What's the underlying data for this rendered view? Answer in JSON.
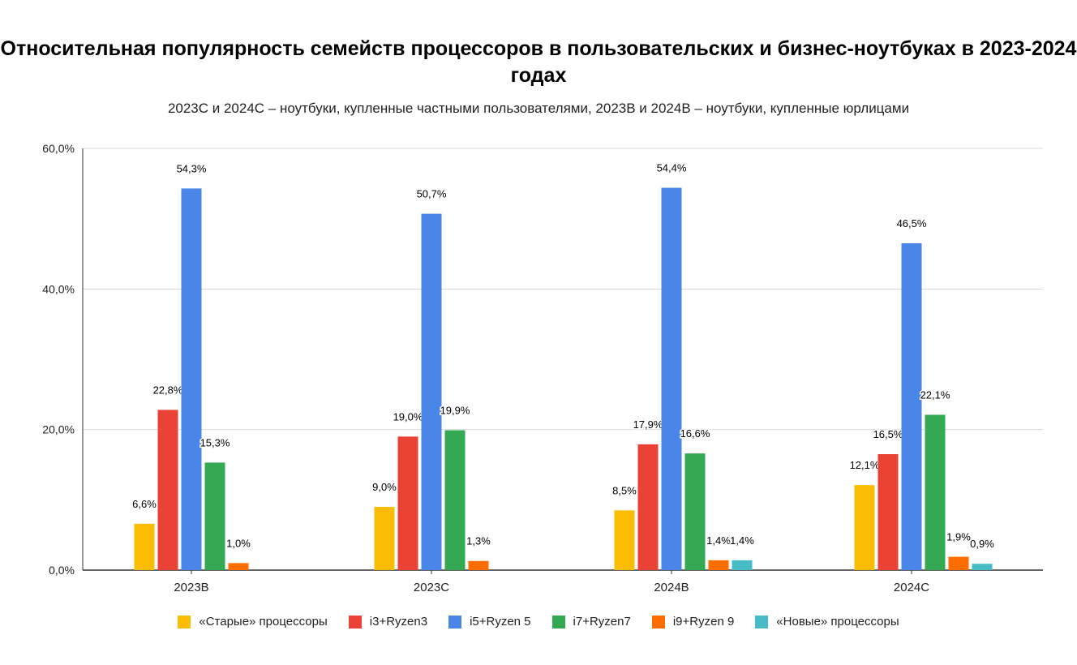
{
  "chart_data": {
    "type": "bar",
    "title": "Относительная популярность семейств процессоров в пользовательских и бизнес-ноутбуках в 2023-2024 годах",
    "subtitle": "2023C и 2024C – ноутбуки, купленные частными пользователями, 2023B и 2024B – ноутбуки, купленные юрлицами",
    "categories": [
      "2023B",
      "2023C",
      "2024B",
      "2024C"
    ],
    "ylim": [
      0,
      60
    ],
    "yticks": [
      0,
      20,
      40,
      60
    ],
    "ytick_labels": [
      "0,0%",
      "20,0%",
      "40,0%",
      "60,0%"
    ],
    "grid": true,
    "legend_position": "bottom",
    "series": [
      {
        "name": "«Старые» процессоры",
        "color": "#FBBC04",
        "values": [
          6.6,
          9.0,
          8.5,
          12.1
        ],
        "labels": [
          "6,6%",
          "9,0%",
          "8,5%",
          "12,1%"
        ]
      },
      {
        "name": "i3+Ryzen3",
        "color": "#EA4335",
        "values": [
          22.8,
          19.0,
          17.9,
          16.5
        ],
        "labels": [
          "22,8%",
          "19,0%",
          "17,9%",
          "16,5%"
        ]
      },
      {
        "name": "i5+Ryzen 5",
        "color": "#4A86E8",
        "values": [
          54.3,
          50.7,
          54.4,
          46.5
        ],
        "labels": [
          "54,3%",
          "50,7%",
          "54,4%",
          "46,5%"
        ]
      },
      {
        "name": "i7+Ryzen7",
        "color": "#34A853",
        "values": [
          15.3,
          19.9,
          16.6,
          22.1
        ],
        "labels": [
          "15,3%",
          "19,9%",
          "16,6%",
          "22,1%"
        ]
      },
      {
        "name": "i9+Ryzen 9",
        "color": "#FF6D01",
        "values": [
          1.0,
          1.3,
          1.4,
          1.9
        ],
        "labels": [
          "1,0%",
          "1,3%",
          "1,4%",
          "1,9%"
        ]
      },
      {
        "name": "«Новые» процессоры",
        "color": "#46BDC6",
        "values": [
          null,
          null,
          1.4,
          0.9
        ],
        "labels": [
          "",
          "",
          "1,4%",
          "0,9%"
        ]
      }
    ]
  }
}
